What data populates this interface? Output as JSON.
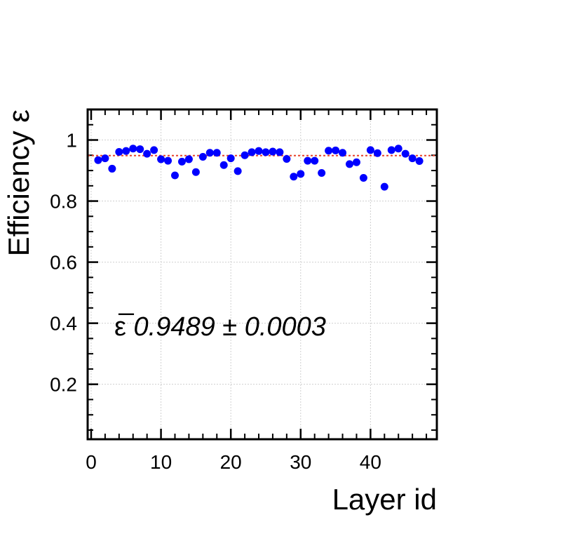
{
  "chart_data": {
    "type": "scatter",
    "xlabel": "Layer id",
    "ylabel": "Efficiency ε",
    "xlim": [
      -0.5,
      49.5
    ],
    "ylim": [
      0.02,
      1.1
    ],
    "x_major_ticks": [
      0,
      10,
      20,
      30,
      40
    ],
    "x_tick_labels": [
      "0",
      "10",
      "20",
      "30",
      "40"
    ],
    "y_major_ticks": [
      0.2,
      0.4,
      0.6,
      0.8,
      1.0
    ],
    "y_tick_labels": [
      "0.2",
      "0.4",
      "0.6",
      "0.8",
      "1"
    ],
    "grid": true,
    "mean_line": {
      "value": 0.9489,
      "style": "dotted",
      "color": "#e8402a"
    },
    "annotation": {
      "symbol": "ε̅",
      "text": "0.9489 ± 0.0003"
    },
    "series": [
      {
        "color": "#0000ff",
        "points": [
          [
            1,
            0.934
          ],
          [
            2,
            0.94
          ],
          [
            3,
            0.906
          ],
          [
            4,
            0.961
          ],
          [
            5,
            0.964
          ],
          [
            6,
            0.972
          ],
          [
            7,
            0.97
          ],
          [
            8,
            0.955
          ],
          [
            9,
            0.967
          ],
          [
            10,
            0.937
          ],
          [
            11,
            0.932
          ],
          [
            12,
            0.884
          ],
          [
            13,
            0.929
          ],
          [
            14,
            0.937
          ],
          [
            15,
            0.895
          ],
          [
            16,
            0.945
          ],
          [
            17,
            0.958
          ],
          [
            18,
            0.958
          ],
          [
            19,
            0.918
          ],
          [
            20,
            0.94
          ],
          [
            21,
            0.898
          ],
          [
            22,
            0.95
          ],
          [
            23,
            0.96
          ],
          [
            24,
            0.964
          ],
          [
            25,
            0.96
          ],
          [
            26,
            0.962
          ],
          [
            27,
            0.96
          ],
          [
            28,
            0.938
          ],
          [
            29,
            0.88
          ],
          [
            30,
            0.889
          ],
          [
            31,
            0.932
          ],
          [
            32,
            0.932
          ],
          [
            33,
            0.892
          ],
          [
            34,
            0.965
          ],
          [
            35,
            0.966
          ],
          [
            36,
            0.958
          ],
          [
            37,
            0.921
          ],
          [
            38,
            0.927
          ],
          [
            39,
            0.876
          ],
          [
            40,
            0.967
          ],
          [
            41,
            0.957
          ],
          [
            42,
            0.847
          ],
          [
            43,
            0.967
          ],
          [
            44,
            0.972
          ],
          [
            45,
            0.955
          ],
          [
            46,
            0.94
          ],
          [
            47,
            0.931
          ]
        ]
      }
    ]
  }
}
